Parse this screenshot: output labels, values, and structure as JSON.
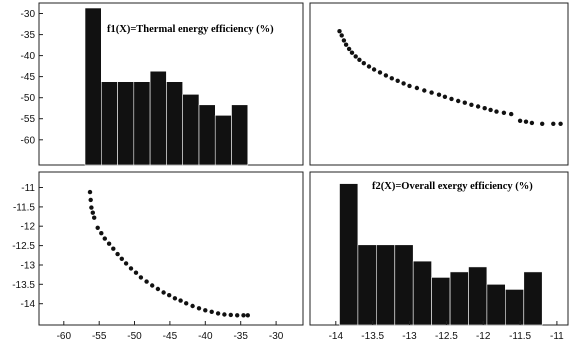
{
  "colors": {
    "background": "#ffffff",
    "ink": "#111111",
    "frame": "#222222"
  },
  "chart_data": [
    {
      "id": "f1-histogram",
      "type": "bar",
      "title": "f1(X)=Thermal energy efficiency (%)",
      "xlabel": "",
      "ylabel": "",
      "xlim": [
        -63.5,
        -26.2
      ],
      "ylim": [
        -66,
        -27.5
      ],
      "y_ticks": [
        -30,
        -35,
        -40,
        -45,
        -50,
        -55,
        -60
      ],
      "x_ticks": [],
      "bars": [
        {
          "x0": -57,
          "x1": -54.7,
          "top": -28.7
        },
        {
          "x0": -54.7,
          "x1": -52.4,
          "top": -46.2
        },
        {
          "x0": -52.4,
          "x1": -50.1,
          "top": -46.2
        },
        {
          "x0": -50.1,
          "x1": -47.8,
          "top": -46.2
        },
        {
          "x0": -47.8,
          "x1": -45.5,
          "top": -43.7
        },
        {
          "x0": -45.5,
          "x1": -43.2,
          "top": -46.2
        },
        {
          "x0": -43.2,
          "x1": -40.9,
          "top": -49.2
        },
        {
          "x0": -40.9,
          "x1": -38.6,
          "top": -51.7
        },
        {
          "x0": -38.6,
          "x1": -36.3,
          "top": -54.2
        },
        {
          "x0": -36.3,
          "x1": -34.0,
          "top": -51.7
        }
      ],
      "baseline": -66
    },
    {
      "id": "scatter-top-right",
      "type": "scatter",
      "xlabel": "",
      "ylabel": "",
      "xlim": [
        -14.35,
        -10.85
      ],
      "ylim": [
        -66,
        -27.5
      ],
      "x_ticks": [],
      "y_ticks": [],
      "points": [
        [
          -13.95,
          -34.2
        ],
        [
          -13.92,
          -35.2
        ],
        [
          -13.89,
          -36.4
        ],
        [
          -13.86,
          -37.4
        ],
        [
          -13.82,
          -38.4
        ],
        [
          -13.78,
          -39.3
        ],
        [
          -13.73,
          -40.2
        ],
        [
          -13.68,
          -41.0
        ],
        [
          -13.62,
          -41.8
        ],
        [
          -13.55,
          -42.6
        ],
        [
          -13.48,
          -43.3
        ],
        [
          -13.4,
          -44.0
        ],
        [
          -13.32,
          -44.7
        ],
        [
          -13.24,
          -45.4
        ],
        [
          -13.16,
          -46.0
        ],
        [
          -13.08,
          -46.6
        ],
        [
          -13.0,
          -47.2
        ],
        [
          -12.9,
          -47.7
        ],
        [
          -12.8,
          -48.3
        ],
        [
          -12.7,
          -48.8
        ],
        [
          -12.6,
          -49.3
        ],
        [
          -12.52,
          -49.8
        ],
        [
          -12.43,
          -50.3
        ],
        [
          -12.34,
          -50.8
        ],
        [
          -12.25,
          -51.2
        ],
        [
          -12.16,
          -51.7
        ],
        [
          -12.07,
          -52.1
        ],
        [
          -11.98,
          -52.5
        ],
        [
          -11.9,
          -52.9
        ],
        [
          -11.82,
          -53.3
        ],
        [
          -11.72,
          -53.6
        ],
        [
          -11.62,
          -53.9
        ],
        [
          -11.5,
          -55.5
        ],
        [
          -11.42,
          -55.7
        ],
        [
          -11.34,
          -56.0
        ],
        [
          -11.2,
          -56.2
        ],
        [
          -11.05,
          -56.2
        ],
        [
          -10.95,
          -56.2
        ]
      ]
    },
    {
      "id": "scatter-bottom-left",
      "type": "scatter",
      "xlabel": "",
      "ylabel": "",
      "xlim": [
        -63.5,
        -26.2
      ],
      "ylim": [
        -14.55,
        -10.6
      ],
      "x_ticks": [
        -60,
        -55,
        -50,
        -45,
        -40,
        -35,
        -30
      ],
      "y_ticks": [
        -11,
        -11.5,
        -12,
        -12.5,
        -13,
        -13.5,
        -14
      ],
      "points": [
        [
          -56.3,
          -11.12
        ],
        [
          -56.2,
          -11.32
        ],
        [
          -56.1,
          -11.52
        ],
        [
          -55.9,
          -11.65
        ],
        [
          -55.7,
          -11.78
        ],
        [
          -55.2,
          -12.04
        ],
        [
          -54.7,
          -12.18
        ],
        [
          -54.2,
          -12.32
        ],
        [
          -53.6,
          -12.45
        ],
        [
          -53.0,
          -12.58
        ],
        [
          -52.4,
          -12.72
        ],
        [
          -51.8,
          -12.84
        ],
        [
          -51.2,
          -12.96
        ],
        [
          -50.5,
          -13.09
        ],
        [
          -49.8,
          -13.2
        ],
        [
          -49.1,
          -13.32
        ],
        [
          -48.3,
          -13.43
        ],
        [
          -47.5,
          -13.53
        ],
        [
          -46.7,
          -13.62
        ],
        [
          -45.9,
          -13.71
        ],
        [
          -45.1,
          -13.78
        ],
        [
          -44.3,
          -13.86
        ],
        [
          -43.5,
          -13.92
        ],
        [
          -42.7,
          -13.99
        ],
        [
          -41.8,
          -14.06
        ],
        [
          -40.9,
          -14.12
        ],
        [
          -40.0,
          -14.17
        ],
        [
          -39.1,
          -14.21
        ],
        [
          -38.2,
          -14.25
        ],
        [
          -37.3,
          -14.28
        ],
        [
          -36.4,
          -14.29
        ],
        [
          -35.5,
          -14.3
        ],
        [
          -34.6,
          -14.3
        ],
        [
          -34.0,
          -14.3
        ]
      ]
    },
    {
      "id": "f2-histogram",
      "type": "bar",
      "title": "f2(X)=Overall exergy efficiency (%)",
      "xlabel": "",
      "ylabel": "",
      "xlim": [
        -14.35,
        -10.85
      ],
      "ylim": [
        -14.55,
        -10.6
      ],
      "x_ticks": [
        -14,
        -13.5,
        -13,
        -12.5,
        -12,
        -11.5,
        -11
      ],
      "y_ticks": [],
      "bars": [
        {
          "x0": -13.95,
          "x1": -13.7,
          "top": -10.9
        },
        {
          "x0": -13.7,
          "x1": -13.45,
          "top": -12.48
        },
        {
          "x0": -13.45,
          "x1": -13.2,
          "top": -12.48
        },
        {
          "x0": -13.2,
          "x1": -12.95,
          "top": -12.48
        },
        {
          "x0": -12.95,
          "x1": -12.7,
          "top": -12.9
        },
        {
          "x0": -12.7,
          "x1": -12.45,
          "top": -13.32
        },
        {
          "x0": -12.45,
          "x1": -12.2,
          "top": -13.18
        },
        {
          "x0": -12.2,
          "x1": -11.95,
          "top": -13.05
        },
        {
          "x0": -11.95,
          "x1": -11.7,
          "top": -13.5
        },
        {
          "x0": -11.7,
          "x1": -11.45,
          "top": -13.63
        },
        {
          "x0": -11.45,
          "x1": -11.2,
          "top": -13.18
        }
      ],
      "baseline": -14.55
    }
  ]
}
